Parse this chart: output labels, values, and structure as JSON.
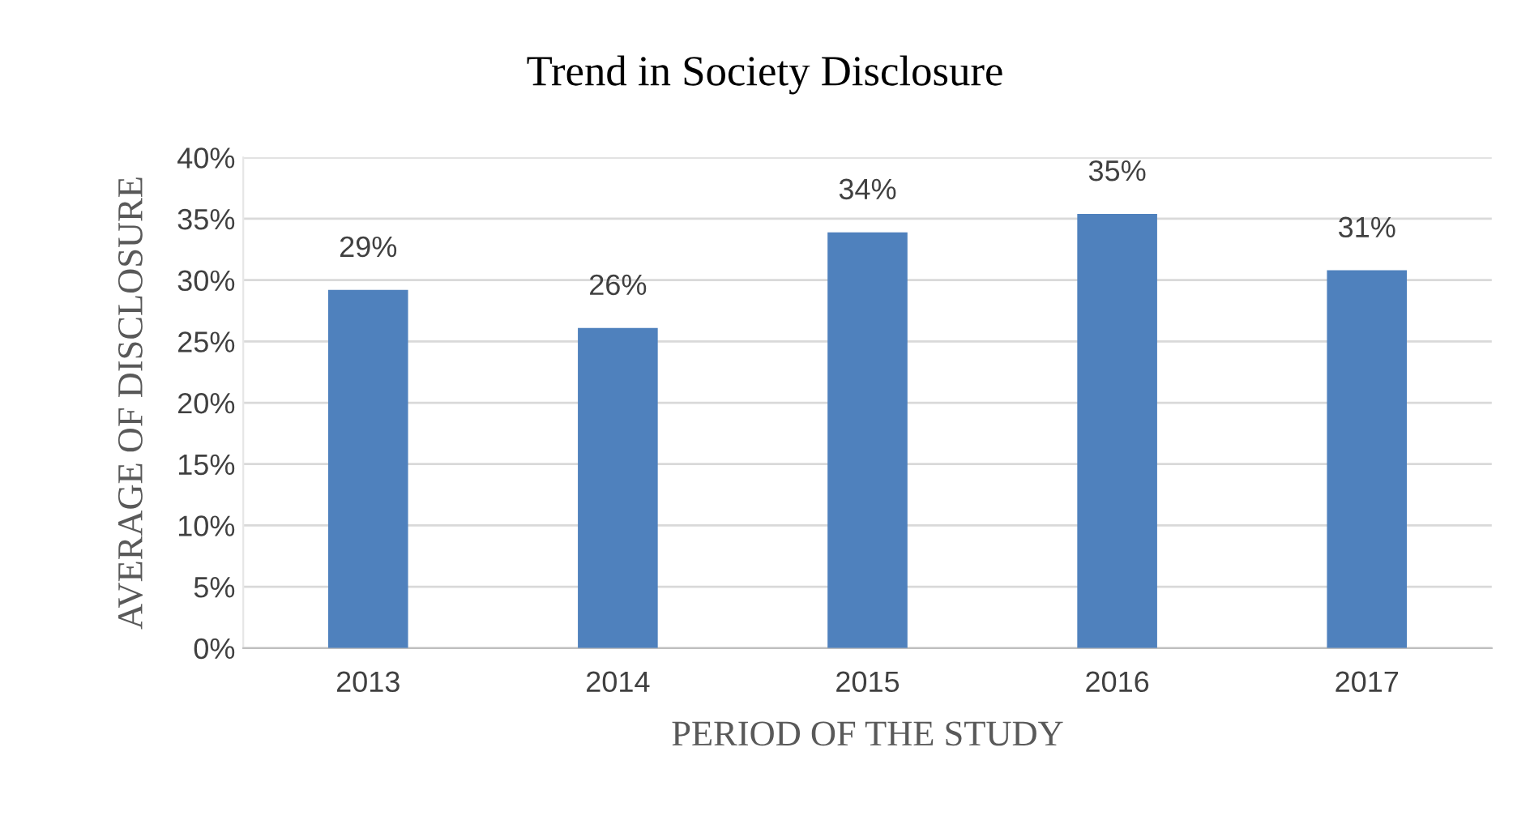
{
  "chart_data": {
    "type": "bar",
    "title": "Trend in Society Disclosure",
    "xlabel": "PERIOD OF THE STUDY",
    "ylabel": "AVERAGE OF DISCLOSURE",
    "categories": [
      "2013",
      "2014",
      "2015",
      "2016",
      "2017"
    ],
    "values": [
      29.2,
      26.1,
      33.9,
      35.4,
      30.8
    ],
    "value_labels": [
      "29%",
      "26%",
      "34%",
      "35%",
      "31%"
    ],
    "color": "#4f81bd",
    "ylim": [
      0,
      40
    ],
    "yticks": [
      {
        "value": 0,
        "label": "0%"
      },
      {
        "value": 5,
        "label": "5%"
      },
      {
        "value": 10,
        "label": "10%"
      },
      {
        "value": 15,
        "label": "15%"
      },
      {
        "value": 20,
        "label": "20%"
      },
      {
        "value": 25,
        "label": "25%"
      },
      {
        "value": 30,
        "label": "30%"
      },
      {
        "value": 35,
        "label": "35%"
      },
      {
        "value": 40,
        "label": "40%"
      }
    ],
    "grid": "y"
  }
}
